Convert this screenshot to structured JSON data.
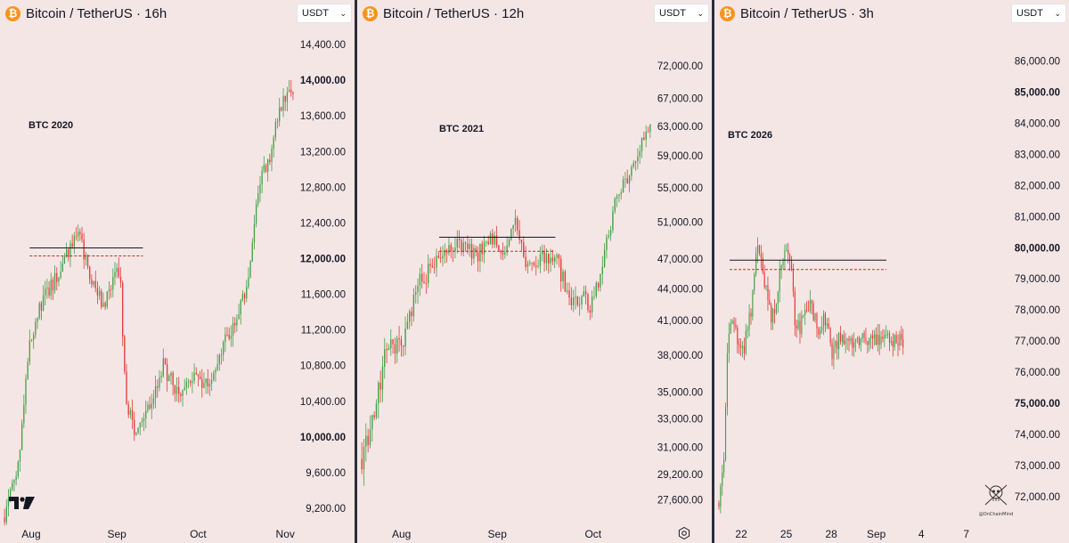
{
  "panels": [
    {
      "header": {
        "symbol": "Bitcoin",
        "sep": "/",
        "quote": "TetherUS",
        "interval": "16h",
        "currency": "USDT"
      },
      "annotation": "BTC 2020",
      "chart_data": {
        "type": "candlestick",
        "ylim": [
          9050,
          14600
        ],
        "y_ticks": [
          {
            "label": "14,400.00",
            "value": 14400,
            "bold": false
          },
          {
            "label": "14,000.00",
            "value": 14000,
            "bold": true
          },
          {
            "label": "13,600.00",
            "value": 13600,
            "bold": false
          },
          {
            "label": "13,200.00",
            "value": 13200,
            "bold": false
          },
          {
            "label": "12,800.00",
            "value": 12800,
            "bold": false
          },
          {
            "label": "12,400.00",
            "value": 12400,
            "bold": false
          },
          {
            "label": "12,000.00",
            "value": 12000,
            "bold": true
          },
          {
            "label": "11,600.00",
            "value": 11600,
            "bold": false
          },
          {
            "label": "11,200.00",
            "value": 11200,
            "bold": false
          },
          {
            "label": "10,800.00",
            "value": 10800,
            "bold": false
          },
          {
            "label": "10,400.00",
            "value": 10400,
            "bold": false
          },
          {
            "label": "10,000.00",
            "value": 10000,
            "bold": true
          },
          {
            "label": "9,600.00",
            "value": 9600,
            "bold": false
          },
          {
            "label": "9,200.00",
            "value": 9200,
            "bold": false
          }
        ],
        "x_ticks": [
          {
            "label": "Aug",
            "t": 0.095
          },
          {
            "label": "Sep",
            "t": 0.39
          },
          {
            "label": "Oct",
            "t": 0.67
          },
          {
            "label": "Nov",
            "t": 0.97
          }
        ],
        "price_path": [
          [
            0,
            9100
          ],
          [
            0.05,
            9700
          ],
          [
            0.09,
            11100
          ],
          [
            0.13,
            11500
          ],
          [
            0.2,
            11900
          ],
          [
            0.26,
            12300
          ],
          [
            0.3,
            11700
          ],
          [
            0.35,
            11500
          ],
          [
            0.4,
            11900
          ],
          [
            0.42,
            10400
          ],
          [
            0.46,
            10000
          ],
          [
            0.5,
            10300
          ],
          [
            0.55,
            10800
          ],
          [
            0.6,
            10500
          ],
          [
            0.66,
            10700
          ],
          [
            0.7,
            10600
          ],
          [
            0.75,
            11000
          ],
          [
            0.8,
            11300
          ],
          [
            0.84,
            11700
          ],
          [
            0.88,
            12800
          ],
          [
            0.92,
            13200
          ],
          [
            0.96,
            13800
          ],
          [
            1.0,
            13900
          ]
        ],
        "level_solid": 12120,
        "level_dashed": 12030,
        "level_range": [
          0.09,
          0.48
        ]
      }
    },
    {
      "header": {
        "symbol": "Bitcoin",
        "sep": "/",
        "quote": "TetherUS",
        "interval": "12h",
        "currency": "USDT"
      },
      "annotation": "BTC 2021",
      "chart_data": {
        "type": "candlestick",
        "ylim": [
          26300,
          78500
        ],
        "log_scale": true,
        "y_ticks": [
          {
            "label": "72,000.00",
            "value": 72000,
            "bold": false
          },
          {
            "label": "67,000.00",
            "value": 67000,
            "bold": false
          },
          {
            "label": "63,000.00",
            "value": 63000,
            "bold": false
          },
          {
            "label": "59,000.00",
            "value": 59000,
            "bold": false
          },
          {
            "label": "55,000.00",
            "value": 55000,
            "bold": false
          },
          {
            "label": "51,000.00",
            "value": 51000,
            "bold": false
          },
          {
            "label": "47,000.00",
            "value": 47000,
            "bold": false
          },
          {
            "label": "44,000.00",
            "value": 44000,
            "bold": false
          },
          {
            "label": "41,000.00",
            "value": 41000,
            "bold": false
          },
          {
            "label": "38,000.00",
            "value": 38000,
            "bold": false
          },
          {
            "label": "35,000.00",
            "value": 35000,
            "bold": false
          },
          {
            "label": "33,000.00",
            "value": 33000,
            "bold": false
          },
          {
            "label": "31,000.00",
            "value": 31000,
            "bold": false
          },
          {
            "label": "29,200.00",
            "value": 29200,
            "bold": false
          },
          {
            "label": "27,600.00",
            "value": 27600,
            "bold": false
          }
        ],
        "x_ticks": [
          {
            "label": "Aug",
            "t": 0.14
          },
          {
            "label": "Sep",
            "t": 0.47
          },
          {
            "label": "Oct",
            "t": 0.8
          }
        ],
        "price_path": [
          [
            0,
            30200
          ],
          [
            0.05,
            33500
          ],
          [
            0.09,
            39000
          ],
          [
            0.14,
            38500
          ],
          [
            0.2,
            44500
          ],
          [
            0.27,
            47000
          ],
          [
            0.33,
            48500
          ],
          [
            0.4,
            47500
          ],
          [
            0.45,
            49000
          ],
          [
            0.5,
            48000
          ],
          [
            0.53,
            51500
          ],
          [
            0.57,
            45500
          ],
          [
            0.62,
            47000
          ],
          [
            0.67,
            47500
          ],
          [
            0.72,
            42500
          ],
          [
            0.76,
            43000
          ],
          [
            0.8,
            42500
          ],
          [
            0.84,
            47500
          ],
          [
            0.88,
            54000
          ],
          [
            0.92,
            56500
          ],
          [
            0.96,
            60000
          ],
          [
            1.0,
            63500
          ]
        ],
        "level_solid": 49300,
        "level_dashed": 47800,
        "level_range": [
          0.27,
          0.67
        ]
      }
    },
    {
      "header": {
        "symbol": "Bitcoin",
        "sep": "/",
        "quote": "TetherUS",
        "interval": "3h",
        "currency": "USDT"
      },
      "annotation": "BTC 2026",
      "chart_data": {
        "type": "candlestick",
        "ylim": [
          71200,
          87100
        ],
        "y_ticks": [
          {
            "label": "86,000.00",
            "value": 86000,
            "bold": false
          },
          {
            "label": "85,000.00",
            "value": 85000,
            "bold": true
          },
          {
            "label": "84,000.00",
            "value": 84000,
            "bold": false
          },
          {
            "label": "83,000.00",
            "value": 83000,
            "bold": false
          },
          {
            "label": "82,000.00",
            "value": 82000,
            "bold": false
          },
          {
            "label": "81,000.00",
            "value": 81000,
            "bold": false
          },
          {
            "label": "80,000.00",
            "value": 80000,
            "bold": true
          },
          {
            "label": "79,000.00",
            "value": 79000,
            "bold": false
          },
          {
            "label": "78,000.00",
            "value": 78000,
            "bold": false
          },
          {
            "label": "77,000.00",
            "value": 77000,
            "bold": false
          },
          {
            "label": "76,000.00",
            "value": 76000,
            "bold": false
          },
          {
            "label": "75,000.00",
            "value": 75000,
            "bold": true
          },
          {
            "label": "74,000.00",
            "value": 74000,
            "bold": false
          },
          {
            "label": "73,000.00",
            "value": 73000,
            "bold": false
          },
          {
            "label": "72,000.00",
            "value": 72000,
            "bold": false
          }
        ],
        "x_ticks": [
          {
            "label": "22",
            "t": 0.08
          },
          {
            "label": "25",
            "t": 0.235
          },
          {
            "label": "28",
            "t": 0.39
          },
          {
            "label": "Sep",
            "t": 0.545
          },
          {
            "label": "4",
            "t": 0.7
          },
          {
            "label": "7",
            "t": 0.855
          }
        ],
        "data_end_t": 0.64,
        "price_path": [
          [
            0,
            71800
          ],
          [
            0.03,
            72800
          ],
          [
            0.05,
            76800
          ],
          [
            0.07,
            77600
          ],
          [
            0.1,
            77200
          ],
          [
            0.14,
            76800
          ],
          [
            0.18,
            78000
          ],
          [
            0.21,
            80200
          ],
          [
            0.25,
            79000
          ],
          [
            0.29,
            77600
          ],
          [
            0.33,
            79000
          ],
          [
            0.36,
            80000
          ],
          [
            0.39,
            79400
          ],
          [
            0.42,
            77200
          ],
          [
            0.46,
            77800
          ],
          [
            0.5,
            78200
          ],
          [
            0.54,
            77200
          ],
          [
            0.58,
            77800
          ],
          [
            0.61,
            76600
          ],
          [
            0.64,
            77000
          ]
        ],
        "level_solid": 79600,
        "level_dashed": 79300,
        "level_range": [
          0.04,
          0.58
        ]
      }
    }
  ],
  "watermark_text": "@OnChainMind",
  "colors": {
    "up": "#26a69a",
    "up_light": "#4caf50",
    "down": "#ef5350",
    "background": "#f5e6e6",
    "text": "#131722"
  }
}
